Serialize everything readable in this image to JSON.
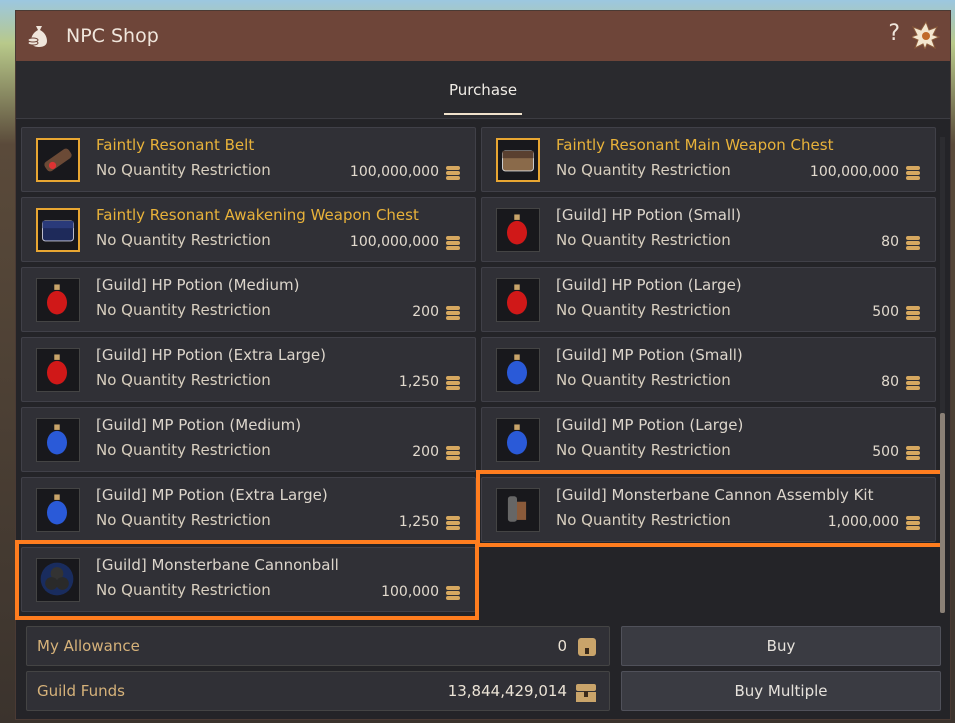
{
  "window": {
    "title": "NPC Shop",
    "help_label": "?"
  },
  "tabs": [
    {
      "label": "Purchase",
      "active": true
    }
  ],
  "items": [
    {
      "name": "Faintly Resonant Belt",
      "restriction": "No Quantity Restriction",
      "price": "100,000,000",
      "icon": "belt-icon",
      "highlight_name": true
    },
    {
      "name": "Faintly Resonant Main Weapon Chest",
      "restriction": "No Quantity Restriction",
      "price": "100,000,000",
      "icon": "chest-icon",
      "highlight_name": true
    },
    {
      "name": "Faintly Resonant Awakening Weapon Chest",
      "restriction": "No Quantity Restriction",
      "price": "100,000,000",
      "icon": "blue-chest-icon",
      "highlight_name": true
    },
    {
      "name": "[Guild] HP Potion (Small)",
      "restriction": "No Quantity Restriction",
      "price": "80",
      "icon": "hp-potion-icon"
    },
    {
      "name": "[Guild] HP Potion (Medium)",
      "restriction": "No Quantity Restriction",
      "price": "200",
      "icon": "hp-potion-icon"
    },
    {
      "name": "[Guild] HP Potion (Large)",
      "restriction": "No Quantity Restriction",
      "price": "500",
      "icon": "hp-potion-icon"
    },
    {
      "name": "[Guild] HP Potion (Extra Large)",
      "restriction": "No Quantity Restriction",
      "price": "1,250",
      "icon": "hp-potion-icon"
    },
    {
      "name": "[Guild] MP Potion (Small)",
      "restriction": "No Quantity Restriction",
      "price": "80",
      "icon": "mp-potion-icon"
    },
    {
      "name": "[Guild] MP Potion (Medium)",
      "restriction": "No Quantity Restriction",
      "price": "200",
      "icon": "mp-potion-icon"
    },
    {
      "name": "[Guild] MP Potion (Large)",
      "restriction": "No Quantity Restriction",
      "price": "500",
      "icon": "mp-potion-icon"
    },
    {
      "name": "[Guild] MP Potion (Extra Large)",
      "restriction": "No Quantity Restriction",
      "price": "1,250",
      "icon": "mp-potion-icon"
    },
    {
      "name": "[Guild] Monsterbane Cannon Assembly Kit",
      "restriction": "No Quantity Restriction",
      "price": "1,000,000",
      "icon": "cannon-kit-icon"
    },
    {
      "name": "[Guild] Monsterbane Cannonball",
      "restriction": "No Quantity Restriction",
      "price": "100,000",
      "icon": "cannonball-icon"
    }
  ],
  "footer": {
    "allowance_label": "My Allowance",
    "allowance_value": "0",
    "funds_label": "Guild Funds",
    "funds_value": "13,844,429,014",
    "buy_label": "Buy",
    "buy_multiple_label": "Buy Multiple"
  },
  "colors": {
    "title_bar": "#6e4539",
    "highlight": "#ff7d1f",
    "item_name_gold": "#e8b23a"
  }
}
